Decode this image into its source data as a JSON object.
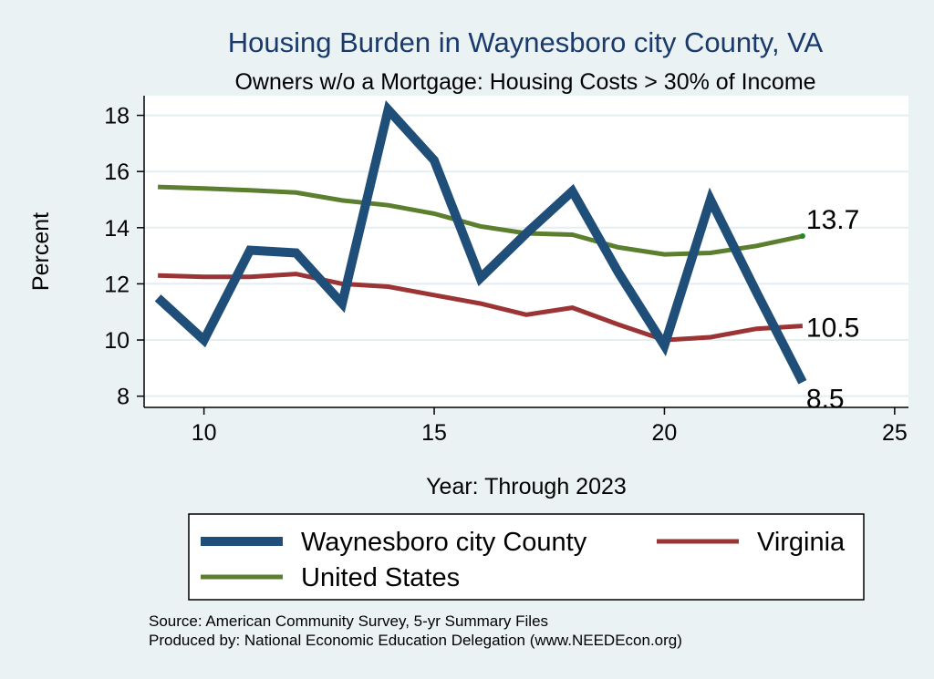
{
  "chart_data": {
    "type": "line",
    "title": "Housing Burden in Waynesboro city County, VA",
    "subtitle": "Owners w/o a Mortgage: Housing Costs > 30% of Income",
    "xlabel": "Year: Through 2023",
    "ylabel": "Percent",
    "xlim": [
      8.7,
      25.3
    ],
    "ylim": [
      7.6,
      18.7
    ],
    "xticks": [
      10,
      15,
      20,
      25
    ],
    "yticks": [
      8,
      10,
      12,
      14,
      16,
      18
    ],
    "grid": true,
    "legend_position": "bottom",
    "x": [
      9,
      10,
      11,
      12,
      13,
      14,
      15,
      16,
      17,
      18,
      19,
      20,
      21,
      22,
      23
    ],
    "series": [
      {
        "name": "Waynesboro city County",
        "color": "#1f4e79",
        "width": "thick",
        "values": [
          11.5,
          10.0,
          13.2,
          13.1,
          11.3,
          18.2,
          16.4,
          12.2,
          13.8,
          15.3,
          12.4,
          9.8,
          15.0,
          11.7,
          8.5
        ],
        "end_label": "8.5"
      },
      {
        "name": "Virginia",
        "color": "#9b3435",
        "width": "medium",
        "values": [
          12.3,
          12.25,
          12.25,
          12.35,
          12.0,
          11.9,
          11.6,
          11.3,
          10.9,
          11.15,
          10.55,
          10.0,
          10.1,
          10.4,
          10.5
        ],
        "end_label": "10.5"
      },
      {
        "name": "United States",
        "color": "#5b7f2e",
        "width": "medium",
        "values": [
          15.45,
          15.4,
          15.33,
          15.25,
          14.97,
          14.8,
          14.5,
          14.05,
          13.8,
          13.75,
          13.3,
          13.05,
          13.1,
          13.35,
          13.7
        ],
        "end_label": "13.7"
      }
    ]
  },
  "legend": {
    "items": [
      "Waynesboro city County",
      "Virginia",
      "United States"
    ]
  },
  "footer": {
    "source": "Source: American Community Survey, 5-yr Summary Files",
    "produced": "Produced by: National Economic Education Delegation (www.NEEDEcon.org)"
  }
}
